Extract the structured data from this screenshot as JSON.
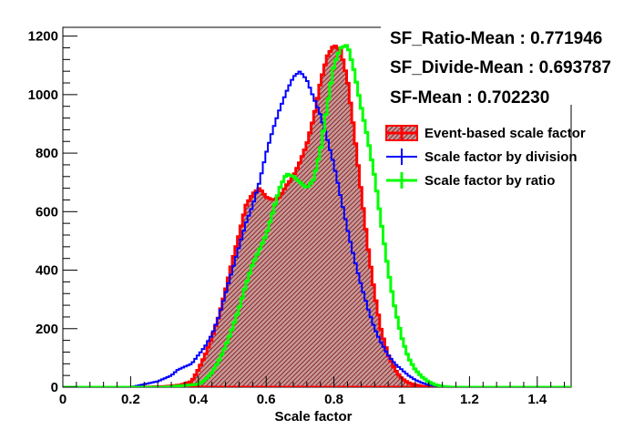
{
  "chart_data": {
    "type": "histogram",
    "title": "",
    "xlabel": "Scale factor",
    "ylabel": "",
    "xlim": [
      0,
      1.5
    ],
    "ylim": [
      0,
      1230
    ],
    "x_ticks": [
      0,
      0.2,
      0.4,
      0.6,
      0.8,
      1,
      1.2,
      1.4
    ],
    "x_tick_labels": [
      "0",
      "0.2",
      "0.4",
      "0.6",
      "0.8",
      "1",
      "1.2",
      "1.4"
    ],
    "y_ticks": [
      0,
      200,
      400,
      600,
      800,
      1000,
      1200
    ],
    "y_tick_labels": [
      "0",
      "200",
      "400",
      "600",
      "800",
      "1000",
      "1200"
    ],
    "grid": false,
    "legend_position": "right",
    "stats": [
      {
        "label": "SF_Ratio-Mean : 0.771946"
      },
      {
        "label": "SF_Divide-Mean : 0.693787"
      },
      {
        "label": "SF-Mean : 0.702230"
      }
    ],
    "series": [
      {
        "name": "Event-based scale factor",
        "color": "#ff0000",
        "style": "filled-hatched",
        "points": [
          [
            0.2,
            0
          ],
          [
            0.3,
            2
          ],
          [
            0.35,
            8
          ],
          [
            0.38,
            20
          ],
          [
            0.4,
            60
          ],
          [
            0.42,
            110
          ],
          [
            0.44,
            170
          ],
          [
            0.46,
            240
          ],
          [
            0.48,
            330
          ],
          [
            0.5,
            430
          ],
          [
            0.52,
            520
          ],
          [
            0.54,
            620
          ],
          [
            0.56,
            660
          ],
          [
            0.58,
            680
          ],
          [
            0.6,
            650
          ],
          [
            0.62,
            640
          ],
          [
            0.64,
            650
          ],
          [
            0.66,
            690
          ],
          [
            0.68,
            720
          ],
          [
            0.7,
            770
          ],
          [
            0.72,
            830
          ],
          [
            0.74,
            920
          ],
          [
            0.76,
            1040
          ],
          [
            0.78,
            1130
          ],
          [
            0.8,
            1170
          ],
          [
            0.82,
            1150
          ],
          [
            0.84,
            1050
          ],
          [
            0.86,
            870
          ],
          [
            0.88,
            670
          ],
          [
            0.9,
            480
          ],
          [
            0.92,
            320
          ],
          [
            0.94,
            190
          ],
          [
            0.96,
            110
          ],
          [
            0.98,
            60
          ],
          [
            1.0,
            30
          ],
          [
            1.02,
            15
          ],
          [
            1.04,
            8
          ],
          [
            1.06,
            3
          ],
          [
            1.1,
            0
          ]
        ]
      },
      {
        "name": "Scale factor by division",
        "color": "#0000ff",
        "style": "line",
        "points": [
          [
            0.2,
            0
          ],
          [
            0.24,
            10
          ],
          [
            0.28,
            20
          ],
          [
            0.32,
            40
          ],
          [
            0.34,
            60
          ],
          [
            0.36,
            70
          ],
          [
            0.38,
            80
          ],
          [
            0.4,
            110
          ],
          [
            0.42,
            140
          ],
          [
            0.44,
            180
          ],
          [
            0.46,
            240
          ],
          [
            0.48,
            320
          ],
          [
            0.5,
            400
          ],
          [
            0.52,
            480
          ],
          [
            0.54,
            560
          ],
          [
            0.56,
            620
          ],
          [
            0.58,
            700
          ],
          [
            0.6,
            800
          ],
          [
            0.62,
            880
          ],
          [
            0.64,
            950
          ],
          [
            0.66,
            1010
          ],
          [
            0.68,
            1060
          ],
          [
            0.7,
            1080
          ],
          [
            0.72,
            1050
          ],
          [
            0.74,
            990
          ],
          [
            0.76,
            930
          ],
          [
            0.78,
            850
          ],
          [
            0.8,
            760
          ],
          [
            0.82,
            650
          ],
          [
            0.84,
            540
          ],
          [
            0.86,
            440
          ],
          [
            0.88,
            350
          ],
          [
            0.9,
            270
          ],
          [
            0.92,
            200
          ],
          [
            0.94,
            150
          ],
          [
            0.96,
            110
          ],
          [
            0.98,
            80
          ],
          [
            1.0,
            60
          ],
          [
            1.02,
            40
          ],
          [
            1.04,
            25
          ],
          [
            1.06,
            15
          ],
          [
            1.08,
            8
          ],
          [
            1.1,
            4
          ],
          [
            1.14,
            0
          ]
        ]
      },
      {
        "name": "Scale factor by ratio",
        "color": "#00ff00",
        "style": "line",
        "points": [
          [
            0.3,
            0
          ],
          [
            0.4,
            10
          ],
          [
            0.42,
            25
          ],
          [
            0.44,
            50
          ],
          [
            0.46,
            90
          ],
          [
            0.48,
            140
          ],
          [
            0.5,
            200
          ],
          [
            0.52,
            270
          ],
          [
            0.54,
            350
          ],
          [
            0.56,
            420
          ],
          [
            0.58,
            470
          ],
          [
            0.6,
            520
          ],
          [
            0.62,
            600
          ],
          [
            0.64,
            680
          ],
          [
            0.66,
            730
          ],
          [
            0.68,
            720
          ],
          [
            0.7,
            700
          ],
          [
            0.72,
            680
          ],
          [
            0.74,
            710
          ],
          [
            0.76,
            810
          ],
          [
            0.78,
            960
          ],
          [
            0.8,
            1100
          ],
          [
            0.82,
            1160
          ],
          [
            0.84,
            1170
          ],
          [
            0.86,
            1080
          ],
          [
            0.88,
            960
          ],
          [
            0.9,
            850
          ],
          [
            0.92,
            720
          ],
          [
            0.94,
            560
          ],
          [
            0.96,
            400
          ],
          [
            0.98,
            270
          ],
          [
            1.0,
            170
          ],
          [
            1.02,
            100
          ],
          [
            1.04,
            60
          ],
          [
            1.06,
            35
          ],
          [
            1.08,
            18
          ],
          [
            1.1,
            8
          ],
          [
            1.12,
            3
          ],
          [
            1.15,
            0
          ]
        ]
      }
    ]
  }
}
